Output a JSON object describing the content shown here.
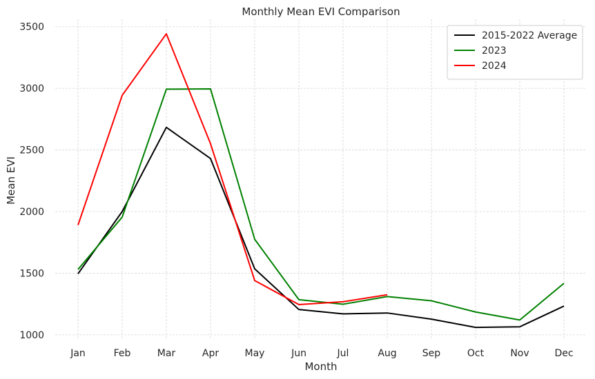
{
  "chart_data": {
    "type": "line",
    "title": "Monthly Mean EVI Comparison",
    "xlabel": "Month",
    "ylabel": "Mean EVI",
    "categories": [
      "Jan",
      "Feb",
      "Mar",
      "Apr",
      "May",
      "Jun",
      "Jul",
      "Aug",
      "Sep",
      "Oct",
      "Nov",
      "Dec"
    ],
    "ylim": [
      960,
      3560
    ],
    "yticks": [
      1000,
      1500,
      2000,
      2500,
      3000,
      3500
    ],
    "grid": true,
    "legend_position": "top-right",
    "series": [
      {
        "name": "2015-2022 Average",
        "color": "#000000",
        "values": [
          1495,
          2000,
          2683,
          2430,
          1535,
          1205,
          1170,
          1177,
          1127,
          1060,
          1065,
          1233
        ]
      },
      {
        "name": "2023",
        "color": "#008000",
        "values": [
          1530,
          1955,
          2993,
          2995,
          1775,
          1285,
          1248,
          1310,
          1276,
          1185,
          1120,
          1418
        ]
      },
      {
        "name": "2024",
        "color": "#ff0000",
        "values": [
          1890,
          2943,
          3442,
          2550,
          1440,
          1245,
          1268,
          1325,
          null,
          null,
          null,
          null
        ]
      }
    ]
  }
}
